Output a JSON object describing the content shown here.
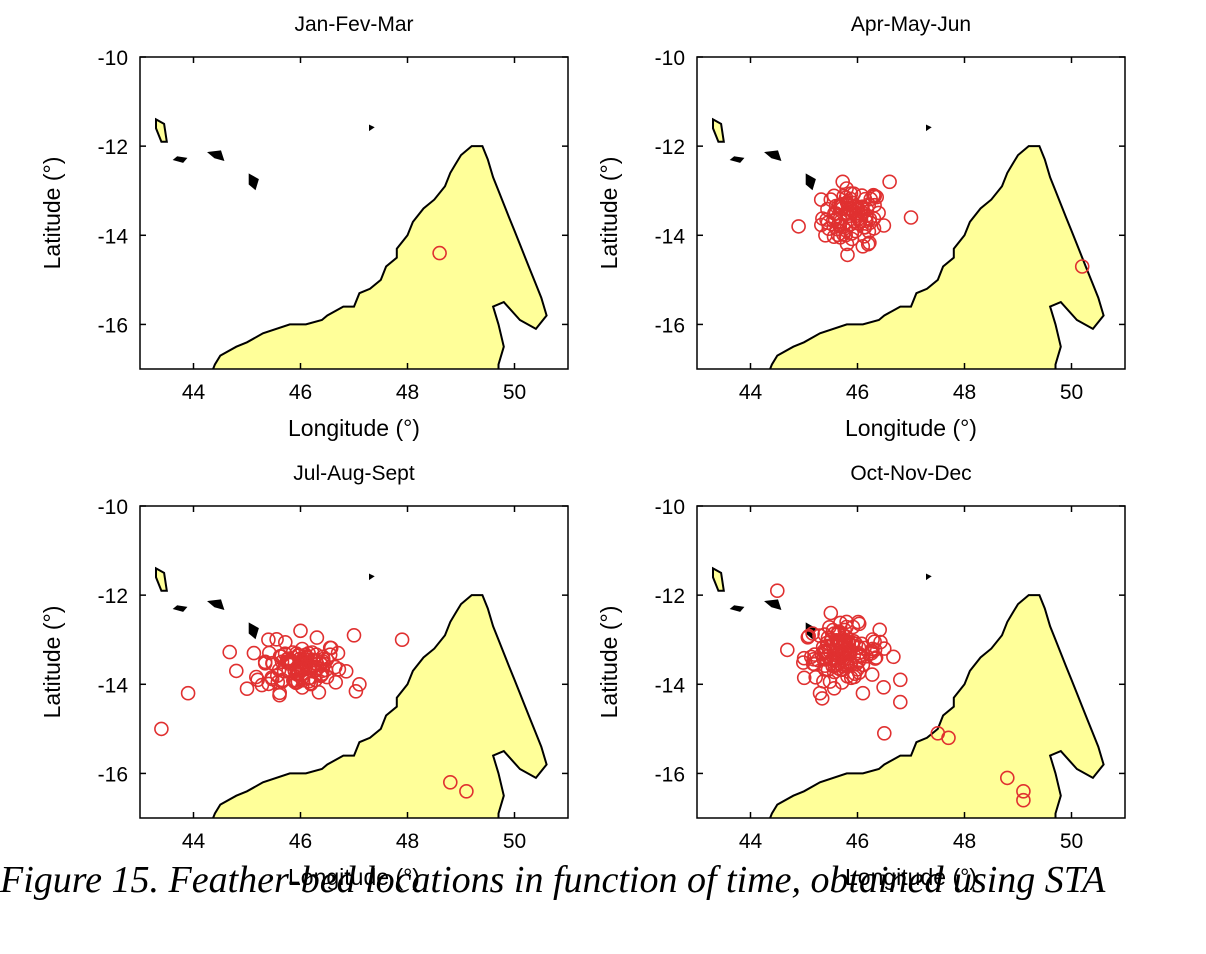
{
  "caption": "Figure 15. Feather-bed locations in function of time, obtained using STA",
  "colors": {
    "land": "#ffff99",
    "coast": "#000000",
    "marker": "#e03030"
  },
  "chart_data": [
    {
      "type": "scatter",
      "title": "Jan-Fev-Mar",
      "xlabel": "Longitude (°)",
      "ylabel": "Latitude (°)",
      "xlim": [
        43,
        51
      ],
      "ylim": [
        -17,
        -10
      ],
      "xticks": [
        "44",
        "46",
        "48",
        "50"
      ],
      "yticks": [
        "-10",
        "-12",
        "-14",
        "-16"
      ],
      "grid": false,
      "points": [
        [
          48.6,
          -14.4
        ]
      ]
    },
    {
      "type": "scatter",
      "title": "Apr-May-Jun",
      "xlabel": "Longitude (°)",
      "ylabel": "Latitude (°)",
      "xlim": [
        43,
        51
      ],
      "ylim": [
        -17,
        -10
      ],
      "xticks": [
        "44",
        "46",
        "48",
        "50"
      ],
      "yticks": [
        "-10",
        "-12",
        "-14",
        "-16"
      ],
      "grid": false,
      "points": [
        [
          44.9,
          -13.8
        ],
        [
          46.6,
          -12.8
        ],
        [
          47.0,
          -13.6
        ],
        [
          50.2,
          -14.7
        ],
        [
          45.5,
          -13.2
        ],
        [
          46.3,
          -13.1
        ],
        [
          45.4,
          -14.0
        ],
        [
          46.2,
          -14.2
        ]
      ],
      "cluster": {
        "center": [
          45.9,
          -13.6
        ],
        "spread": [
          0.28,
          0.32
        ],
        "count": 90
      }
    },
    {
      "type": "scatter",
      "title": "Jul-Aug-Sept",
      "xlabel": "Longitude (°)",
      "ylabel": "Latitude (°)",
      "xlim": [
        43,
        51
      ],
      "ylim": [
        -17,
        -10
      ],
      "xticks": [
        "44",
        "46",
        "48",
        "50"
      ],
      "yticks": [
        "-10",
        "-12",
        "-14",
        "-16"
      ],
      "grid": false,
      "points": [
        [
          43.4,
          -15.0
        ],
        [
          43.9,
          -14.2
        ],
        [
          44.8,
          -13.7
        ],
        [
          45.0,
          -14.1
        ],
        [
          45.4,
          -13.0
        ],
        [
          47.0,
          -12.9
        ],
        [
          47.1,
          -14.0
        ],
        [
          47.9,
          -13.0
        ],
        [
          48.8,
          -16.2
        ],
        [
          49.1,
          -16.4
        ],
        [
          46.0,
          -12.8
        ],
        [
          46.7,
          -13.3
        ],
        [
          45.2,
          -13.9
        ]
      ],
      "cluster": {
        "center": [
          46.0,
          -13.6
        ],
        "spread": [
          0.38,
          0.28
        ],
        "count": 110
      }
    },
    {
      "type": "scatter",
      "title": "Oct-Nov-Dec",
      "xlabel": "Longitude (°)",
      "ylabel": "Latitude (°)",
      "xlim": [
        43,
        51
      ],
      "ylim": [
        -17,
        -10
      ],
      "xticks": [
        "44",
        "46",
        "48",
        "50"
      ],
      "yticks": [
        "-10",
        "-12",
        "-14",
        "-16"
      ],
      "grid": false,
      "points": [
        [
          44.5,
          -11.9
        ],
        [
          45.3,
          -14.2
        ],
        [
          45.5,
          -12.4
        ],
        [
          46.5,
          -13.2
        ],
        [
          46.5,
          -15.1
        ],
        [
          46.8,
          -13.9
        ],
        [
          46.8,
          -14.4
        ],
        [
          47.5,
          -15.1
        ],
        [
          47.7,
          -15.2
        ],
        [
          48.8,
          -16.1
        ],
        [
          49.1,
          -16.4
        ],
        [
          49.1,
          -16.6
        ],
        [
          46.1,
          -14.2
        ]
      ],
      "cluster": {
        "center": [
          45.7,
          -13.3
        ],
        "spread": [
          0.35,
          0.3
        ],
        "count": 130
      }
    }
  ]
}
